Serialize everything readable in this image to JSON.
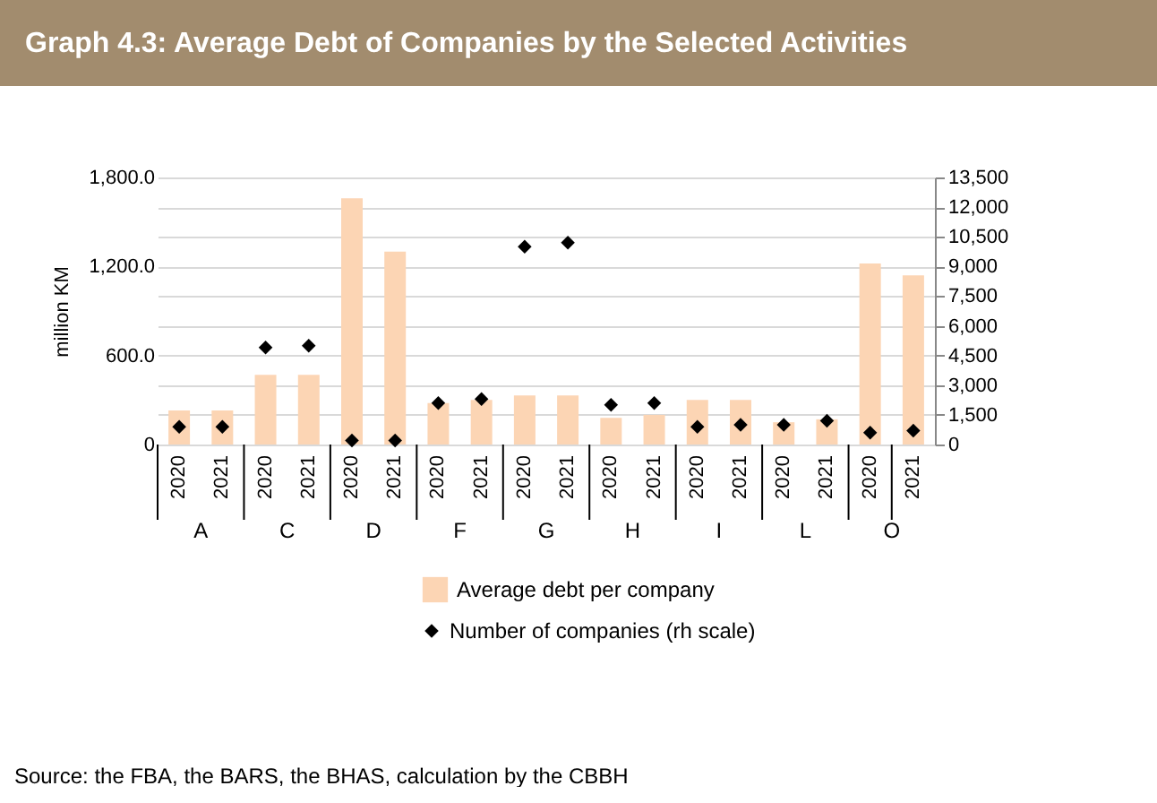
{
  "chart_data": {
    "type": "bar",
    "title": "Graph 4.3: Average Debt of Companies by the Selected Activities",
    "categories": [
      "2020",
      "2021",
      "2020",
      "2021",
      "2020",
      "2021",
      "2020",
      "2021",
      "2020",
      "2021",
      "2020",
      "2021",
      "2020",
      "2021",
      "2020",
      "2021",
      "2020",
      "2021"
    ],
    "series": [
      {
        "name": "Average debt per company",
        "color": "#fcd5b4",
        "values": [
          230,
          230,
          470,
          470,
          1660,
          1300,
          280,
          300,
          330,
          330,
          180,
          200,
          300,
          300,
          150,
          170,
          1220,
          1140
        ]
      },
      {
        "name": "Number of companies (rh scale)",
        "type": "scatter",
        "axis": "y2",
        "color": "#000000",
        "values": [
          900,
          900,
          4900,
          5000,
          200,
          200,
          2100,
          2300,
          10000,
          10200,
          2000,
          2100,
          900,
          1000,
          1000,
          1200,
          600,
          700
        ]
      }
    ],
    "ylabel": "million KM",
    "ylim": [
      0,
      1800
    ],
    "yticks": [
      {
        "value": 0,
        "label": "0"
      },
      {
        "value": 600,
        "label": "600.0"
      },
      {
        "value": 1200,
        "label": "1,200.0"
      },
      {
        "value": 1800,
        "label": "1,800.0"
      }
    ],
    "y2lim": [
      0,
      13500
    ],
    "y2ticks": [
      {
        "value": 0,
        "label": "0"
      },
      {
        "value": 1500,
        "label": "1,500"
      },
      {
        "value": 3000,
        "label": "3,000"
      },
      {
        "value": 4500,
        "label": "4,500"
      },
      {
        "value": 6000,
        "label": "6,000"
      },
      {
        "value": 7500,
        "label": "7,500"
      },
      {
        "value": 9000,
        "label": "9,000"
      },
      {
        "value": 10500,
        "label": "10,500"
      },
      {
        "value": 12000,
        "label": "12,000"
      },
      {
        "value": 13500,
        "label": "13,500"
      }
    ],
    "grid": true,
    "legend": "bottom",
    "marker": "diamond",
    "annotations": [
      "A",
      "C",
      "D",
      "F",
      "G",
      "H",
      "I",
      "L",
      "O",
      "Source: the FBA, the BARS, the BHAS,  calculation by the CBBH"
    ]
  }
}
